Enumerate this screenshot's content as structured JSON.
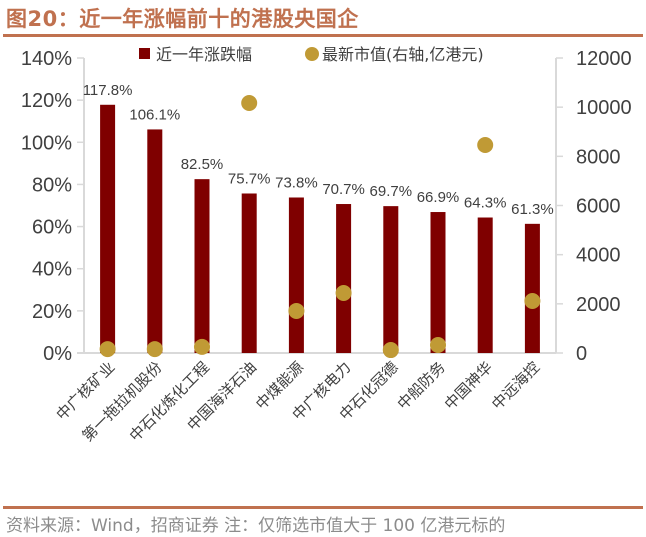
{
  "header": {
    "title": "图20：近一年涨幅前十的港股央国企"
  },
  "footer": {
    "source": "资料来源：Wind，招商证券  注：仅筛选市值大于 100 亿港元标的"
  },
  "colors": {
    "title": "#C0714F",
    "bar": "#7F0000",
    "dot": "#C09A35",
    "axis": "#D9D9D9",
    "text": "#404040"
  },
  "chart_data": {
    "type": "bar",
    "title": "近一年涨幅前十的港股央国企",
    "categories": [
      "中广核矿业",
      "第一拖拉机股份",
      "中石化炼化工程",
      "中国海洋石油",
      "中煤能源",
      "中广核电力",
      "中石化冠德",
      "中船防务",
      "中国神华",
      "中远海控"
    ],
    "series": [
      {
        "name": "近一年涨跌幅",
        "type": "bar",
        "axis": "left",
        "unit": "%",
        "values": [
          117.8,
          106.1,
          82.5,
          75.7,
          73.8,
          70.7,
          69.7,
          66.9,
          64.3,
          61.3
        ],
        "labels": [
          "117.8%",
          "106.1%",
          "82.5%",
          "75.7%",
          "73.8%",
          "70.7%",
          "69.7%",
          "66.9%",
          "64.3%",
          "61.3%"
        ]
      },
      {
        "name": "最新市值(右轴,亿港元)",
        "type": "scatter",
        "axis": "right",
        "unit": "亿港元",
        "values": [
          160,
          160,
          250,
          10170,
          1710,
          2440,
          120,
          325,
          8460,
          2115
        ]
      }
    ],
    "left_axis": {
      "min": 0,
      "max": 140,
      "step": 20,
      "ticks": [
        "0%",
        "20%",
        "40%",
        "60%",
        "80%",
        "100%",
        "120%",
        "140%"
      ]
    },
    "right_axis": {
      "min": 0,
      "max": 12000,
      "step": 2000,
      "ticks": [
        "0",
        "2000",
        "4000",
        "6000",
        "8000",
        "10000",
        "12000"
      ]
    },
    "legend": {
      "position": "top",
      "entries": [
        "近一年涨跌幅",
        "最新市值(右轴,亿港元)"
      ]
    },
    "grid": false,
    "xlabel": "",
    "ylabel": ""
  }
}
